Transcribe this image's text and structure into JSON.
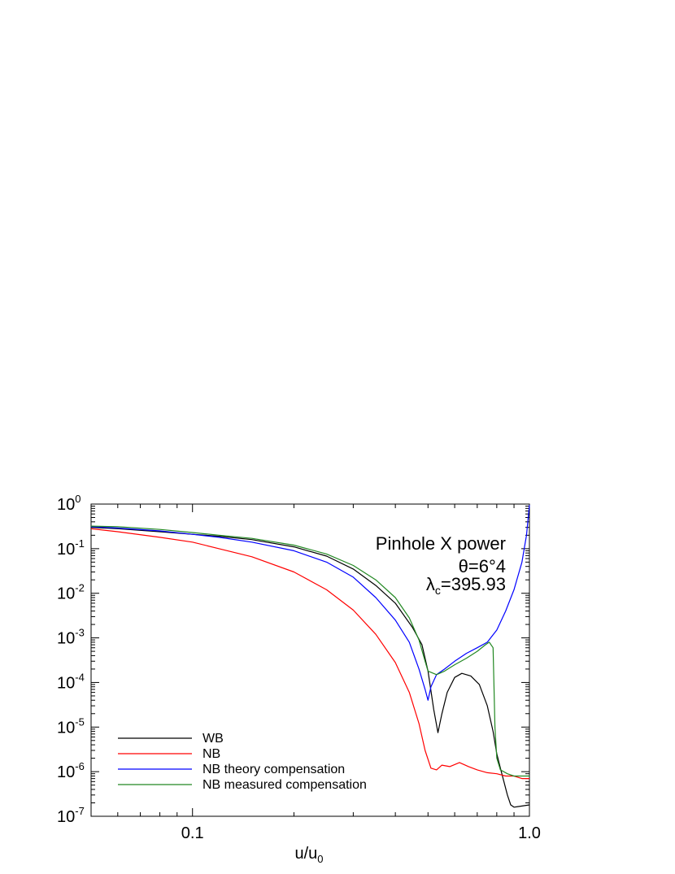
{
  "chart_data": {
    "type": "line",
    "xlabel": {
      "base": "u/u",
      "sub": "0"
    },
    "ylabel": "",
    "xscale": "log",
    "yscale": "log",
    "xlim": [
      0.05,
      1.0
    ],
    "ylim": [
      1e-07,
      1.0
    ],
    "x_ticks": [
      {
        "value": 0.1,
        "label": "0.1"
      },
      {
        "value": 1.0,
        "label": "1.0"
      }
    ],
    "y_ticks": [
      {
        "value": 1,
        "base": "10",
        "exp": "0"
      },
      {
        "value": 0.1,
        "base": "10",
        "exp": "-1"
      },
      {
        "value": 0.01,
        "base": "10",
        "exp": "-2"
      },
      {
        "value": 0.001,
        "base": "10",
        "exp": "-3"
      },
      {
        "value": 0.0001,
        "base": "10",
        "exp": "-4"
      },
      {
        "value": 1e-05,
        "base": "10",
        "exp": "-5"
      },
      {
        "value": 1e-06,
        "base": "10",
        "exp": "-6"
      },
      {
        "value": 1e-07,
        "base": "10",
        "exp": "-7"
      }
    ],
    "annotations": {
      "line1": "Pinhole X power",
      "line2": "θ=6°4",
      "line3_symbol": "λ",
      "line3_sub": "c",
      "line3_value": "=395.93"
    },
    "legend_position": "bottom-left",
    "grid": false,
    "series": [
      {
        "name": "WB",
        "color": "#000000",
        "points": [
          [
            0.05,
            0.3
          ],
          [
            0.06,
            0.28
          ],
          [
            0.08,
            0.24
          ],
          [
            0.1,
            0.21
          ],
          [
            0.12,
            0.19
          ],
          [
            0.15,
            0.16
          ],
          [
            0.2,
            0.11
          ],
          [
            0.25,
            0.068
          ],
          [
            0.3,
            0.035
          ],
          [
            0.35,
            0.015
          ],
          [
            0.4,
            0.006
          ],
          [
            0.45,
            0.0017
          ],
          [
            0.48,
            0.0007
          ],
          [
            0.5,
            0.00018
          ],
          [
            0.52,
            2.5e-05
          ],
          [
            0.535,
            7.5e-06
          ],
          [
            0.55,
            2e-05
          ],
          [
            0.57,
            6e-05
          ],
          [
            0.6,
            0.00013
          ],
          [
            0.63,
            0.00016
          ],
          [
            0.67,
            0.00014
          ],
          [
            0.71,
            9e-05
          ],
          [
            0.75,
            3e-05
          ],
          [
            0.78,
            8e-06
          ],
          [
            0.8,
            2.5e-06
          ],
          [
            0.82,
            1.2e-06
          ],
          [
            0.84,
            6e-07
          ],
          [
            0.86,
            3e-07
          ],
          [
            0.88,
            1.8e-07
          ],
          [
            0.9,
            1.6e-07
          ],
          [
            0.95,
            1.7e-07
          ],
          [
            1.0,
            1.8e-07
          ]
        ]
      },
      {
        "name": "NB",
        "color": "#ff0000",
        "points": [
          [
            0.05,
            0.28
          ],
          [
            0.06,
            0.24
          ],
          [
            0.08,
            0.18
          ],
          [
            0.1,
            0.14
          ],
          [
            0.12,
            0.1
          ],
          [
            0.15,
            0.066
          ],
          [
            0.2,
            0.03
          ],
          [
            0.25,
            0.012
          ],
          [
            0.3,
            0.0042
          ],
          [
            0.35,
            0.0012
          ],
          [
            0.4,
            0.00028
          ],
          [
            0.44,
            6e-05
          ],
          [
            0.47,
            1.2e-05
          ],
          [
            0.49,
            3e-06
          ],
          [
            0.51,
            1.2e-06
          ],
          [
            0.53,
            1.1e-06
          ],
          [
            0.55,
            1.4e-06
          ],
          [
            0.58,
            1.3e-06
          ],
          [
            0.62,
            1.6e-06
          ],
          [
            0.66,
            1.3e-06
          ],
          [
            0.7,
            1.1e-06
          ],
          [
            0.75,
            9.5e-07
          ],
          [
            0.8,
            9e-07
          ],
          [
            0.85,
            8e-07
          ],
          [
            0.9,
            8e-07
          ],
          [
            0.95,
            7e-07
          ],
          [
            1.0,
            7e-07
          ]
        ]
      },
      {
        "name": "NB theory compensation",
        "color": "#0000ff",
        "points": [
          [
            0.05,
            0.31
          ],
          [
            0.06,
            0.29
          ],
          [
            0.08,
            0.25
          ],
          [
            0.1,
            0.21
          ],
          [
            0.12,
            0.18
          ],
          [
            0.15,
            0.14
          ],
          [
            0.2,
            0.09
          ],
          [
            0.25,
            0.05
          ],
          [
            0.3,
            0.023
          ],
          [
            0.35,
            0.008
          ],
          [
            0.4,
            0.0025
          ],
          [
            0.44,
            0.0008
          ],
          [
            0.47,
            0.0002
          ],
          [
            0.49,
            7e-05
          ],
          [
            0.5,
            4e-05
          ],
          [
            0.51,
            8e-05
          ],
          [
            0.53,
            0.00015
          ],
          [
            0.56,
            0.0002
          ],
          [
            0.6,
            0.0003
          ],
          [
            0.65,
            0.00045
          ],
          [
            0.7,
            0.0006
          ],
          [
            0.75,
            0.0008
          ],
          [
            0.8,
            0.0015
          ],
          [
            0.85,
            0.004
          ],
          [
            0.9,
            0.012
          ],
          [
            0.95,
            0.05
          ],
          [
            0.98,
            0.2
          ],
          [
            1.0,
            0.95
          ]
        ]
      },
      {
        "name": "NB measured compensation",
        "color": "#228822",
        "points": [
          [
            0.05,
            0.32
          ],
          [
            0.06,
            0.31
          ],
          [
            0.08,
            0.27
          ],
          [
            0.1,
            0.23
          ],
          [
            0.12,
            0.2
          ],
          [
            0.15,
            0.17
          ],
          [
            0.2,
            0.12
          ],
          [
            0.25,
            0.076
          ],
          [
            0.3,
            0.042
          ],
          [
            0.35,
            0.02
          ],
          [
            0.4,
            0.008
          ],
          [
            0.44,
            0.0028
          ],
          [
            0.47,
            0.0009
          ],
          [
            0.49,
            0.0003
          ],
          [
            0.5,
            0.00018
          ],
          [
            0.53,
            0.00015
          ],
          [
            0.56,
            0.00018
          ],
          [
            0.6,
            0.00025
          ],
          [
            0.65,
            0.00035
          ],
          [
            0.7,
            0.0005
          ],
          [
            0.74,
            0.0007
          ],
          [
            0.76,
            0.0008
          ],
          [
            0.78,
            0.0006
          ],
          [
            0.79,
            1e-05
          ],
          [
            0.8,
            2e-06
          ],
          [
            0.82,
            1.1e-06
          ],
          [
            0.86,
            9e-07
          ],
          [
            0.9,
            8e-07
          ],
          [
            0.95,
            8e-07
          ],
          [
            1.0,
            8e-07
          ]
        ]
      }
    ]
  }
}
